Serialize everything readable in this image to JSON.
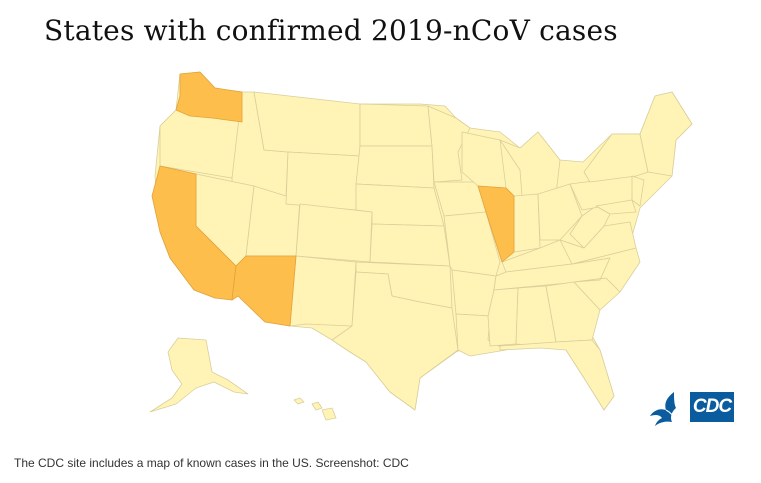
{
  "title": "States with confirmed 2019-nCoV cases",
  "caption": "The CDC site includes a map of known cases in the US. Screenshot: CDC",
  "colors": {
    "no_cases": "#FFF3B6",
    "confirmed": "#FDBE4C",
    "border": "#D9CF9A"
  },
  "confirmed_states": [
    "Washington",
    "California",
    "Arizona",
    "Illinois"
  ],
  "logos": {
    "cdc_badge": "CDC",
    "hhs_icon": "hhs-eagle-icon"
  }
}
